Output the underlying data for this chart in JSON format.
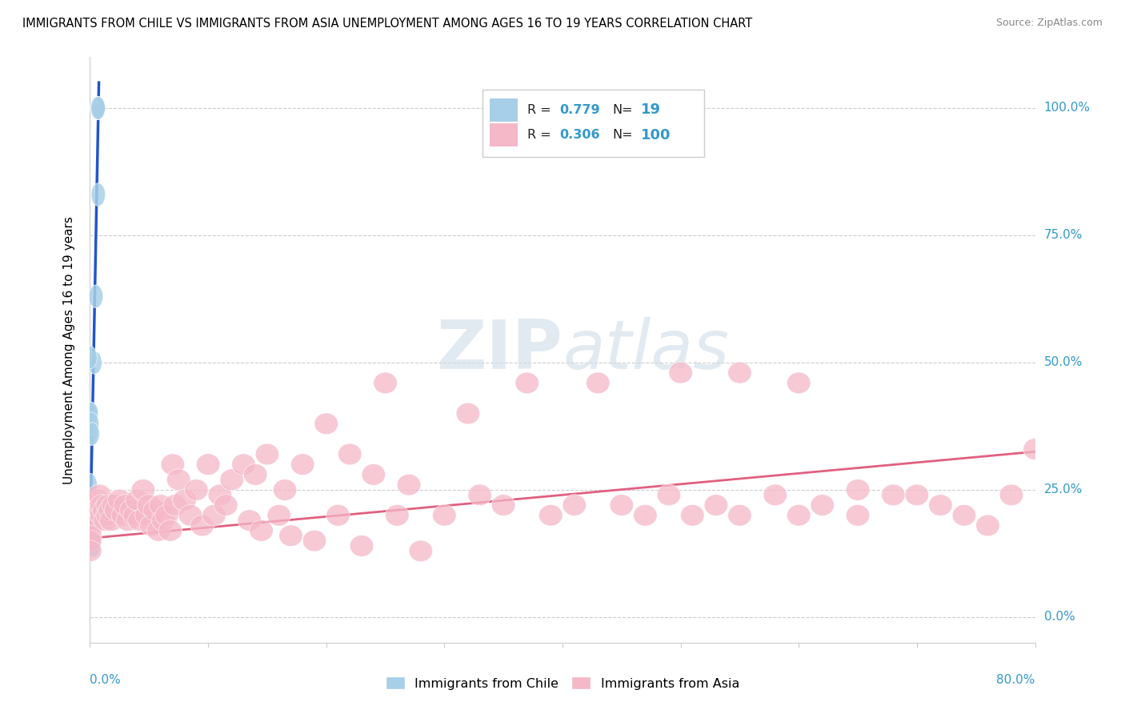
{
  "title": "IMMIGRANTS FROM CHILE VS IMMIGRANTS FROM ASIA UNEMPLOYMENT AMONG AGES 16 TO 19 YEARS CORRELATION CHART",
  "source": "Source: ZipAtlas.com",
  "ylabel": "Unemployment Among Ages 16 to 19 years",
  "ytick_labels": [
    "0.0%",
    "25.0%",
    "50.0%",
    "75.0%",
    "100.0%"
  ],
  "ytick_vals": [
    0.0,
    0.25,
    0.5,
    0.75,
    1.0
  ],
  "legend_chile_R": "0.779",
  "legend_chile_N": "19",
  "legend_asia_R": "0.306",
  "legend_asia_N": "100",
  "color_chile": "#a8cfe8",
  "color_asia": "#f5b8c8",
  "color_line_chile": "#2255cc",
  "color_line_asia": "#e06080",
  "xlim": [
    0.0,
    0.8
  ],
  "ylim": [
    -0.05,
    1.1
  ],
  "chile_line_x0": 0.0,
  "chile_line_y0": 0.14,
  "chile_line_x1": 0.0075,
  "chile_line_y1": 1.05,
  "asia_line_x0": 0.0,
  "asia_line_y0": 0.155,
  "asia_line_x1": 0.8,
  "asia_line_y1": 0.325,
  "chile_points_x": [
    0.006,
    0.0065,
    0.007,
    0.0068,
    0.007,
    0.005,
    0.004,
    0.0,
    0.0,
    0.0,
    0.0,
    0.0,
    0.0,
    0.001,
    0.0015,
    0.002,
    0.0015,
    0.002,
    0.003
  ],
  "chile_points_y": [
    1.0,
    1.0,
    1.0,
    1.0,
    0.83,
    0.63,
    0.5,
    0.51,
    0.4,
    0.36,
    0.26,
    0.22,
    0.22,
    0.4,
    0.38,
    0.36,
    0.22,
    0.22,
    0.14
  ],
  "asia_points_x": [
    0.0,
    0.0,
    0.0,
    0.0,
    0.0,
    0.0,
    0.0,
    0.0,
    0.005,
    0.007,
    0.008,
    0.009,
    0.01,
    0.01,
    0.012,
    0.013,
    0.015,
    0.015,
    0.017,
    0.018,
    0.02,
    0.022,
    0.025,
    0.028,
    0.03,
    0.032,
    0.035,
    0.038,
    0.04,
    0.042,
    0.045,
    0.048,
    0.05,
    0.052,
    0.055,
    0.058,
    0.06,
    0.062,
    0.065,
    0.068,
    0.07,
    0.072,
    0.075,
    0.08,
    0.085,
    0.09,
    0.095,
    0.1,
    0.105,
    0.11,
    0.115,
    0.12,
    0.13,
    0.135,
    0.14,
    0.145,
    0.15,
    0.16,
    0.165,
    0.17,
    0.18,
    0.19,
    0.2,
    0.21,
    0.22,
    0.23,
    0.24,
    0.25,
    0.26,
    0.27,
    0.28,
    0.3,
    0.32,
    0.33,
    0.35,
    0.37,
    0.39,
    0.41,
    0.43,
    0.45,
    0.47,
    0.49,
    0.51,
    0.53,
    0.55,
    0.58,
    0.6,
    0.62,
    0.65,
    0.68,
    0.5,
    0.55,
    0.6,
    0.65,
    0.7,
    0.72,
    0.74,
    0.76,
    0.78,
    0.8
  ],
  "asia_points_y": [
    0.22,
    0.22,
    0.2,
    0.18,
    0.17,
    0.16,
    0.15,
    0.13,
    0.22,
    0.23,
    0.24,
    0.21,
    0.22,
    0.2,
    0.21,
    0.19,
    0.22,
    0.2,
    0.21,
    0.19,
    0.22,
    0.21,
    0.23,
    0.2,
    0.22,
    0.19,
    0.21,
    0.2,
    0.23,
    0.19,
    0.25,
    0.2,
    0.22,
    0.18,
    0.21,
    0.17,
    0.22,
    0.19,
    0.2,
    0.17,
    0.3,
    0.22,
    0.27,
    0.23,
    0.2,
    0.25,
    0.18,
    0.3,
    0.2,
    0.24,
    0.22,
    0.27,
    0.3,
    0.19,
    0.28,
    0.17,
    0.32,
    0.2,
    0.25,
    0.16,
    0.3,
    0.15,
    0.38,
    0.2,
    0.32,
    0.14,
    0.28,
    0.46,
    0.2,
    0.26,
    0.13,
    0.2,
    0.4,
    0.24,
    0.22,
    0.46,
    0.2,
    0.22,
    0.46,
    0.22,
    0.2,
    0.24,
    0.2,
    0.22,
    0.2,
    0.24,
    0.2,
    0.22,
    0.2,
    0.24,
    0.48,
    0.48,
    0.46,
    0.25,
    0.24,
    0.22,
    0.2,
    0.18,
    0.24,
    0.33
  ]
}
